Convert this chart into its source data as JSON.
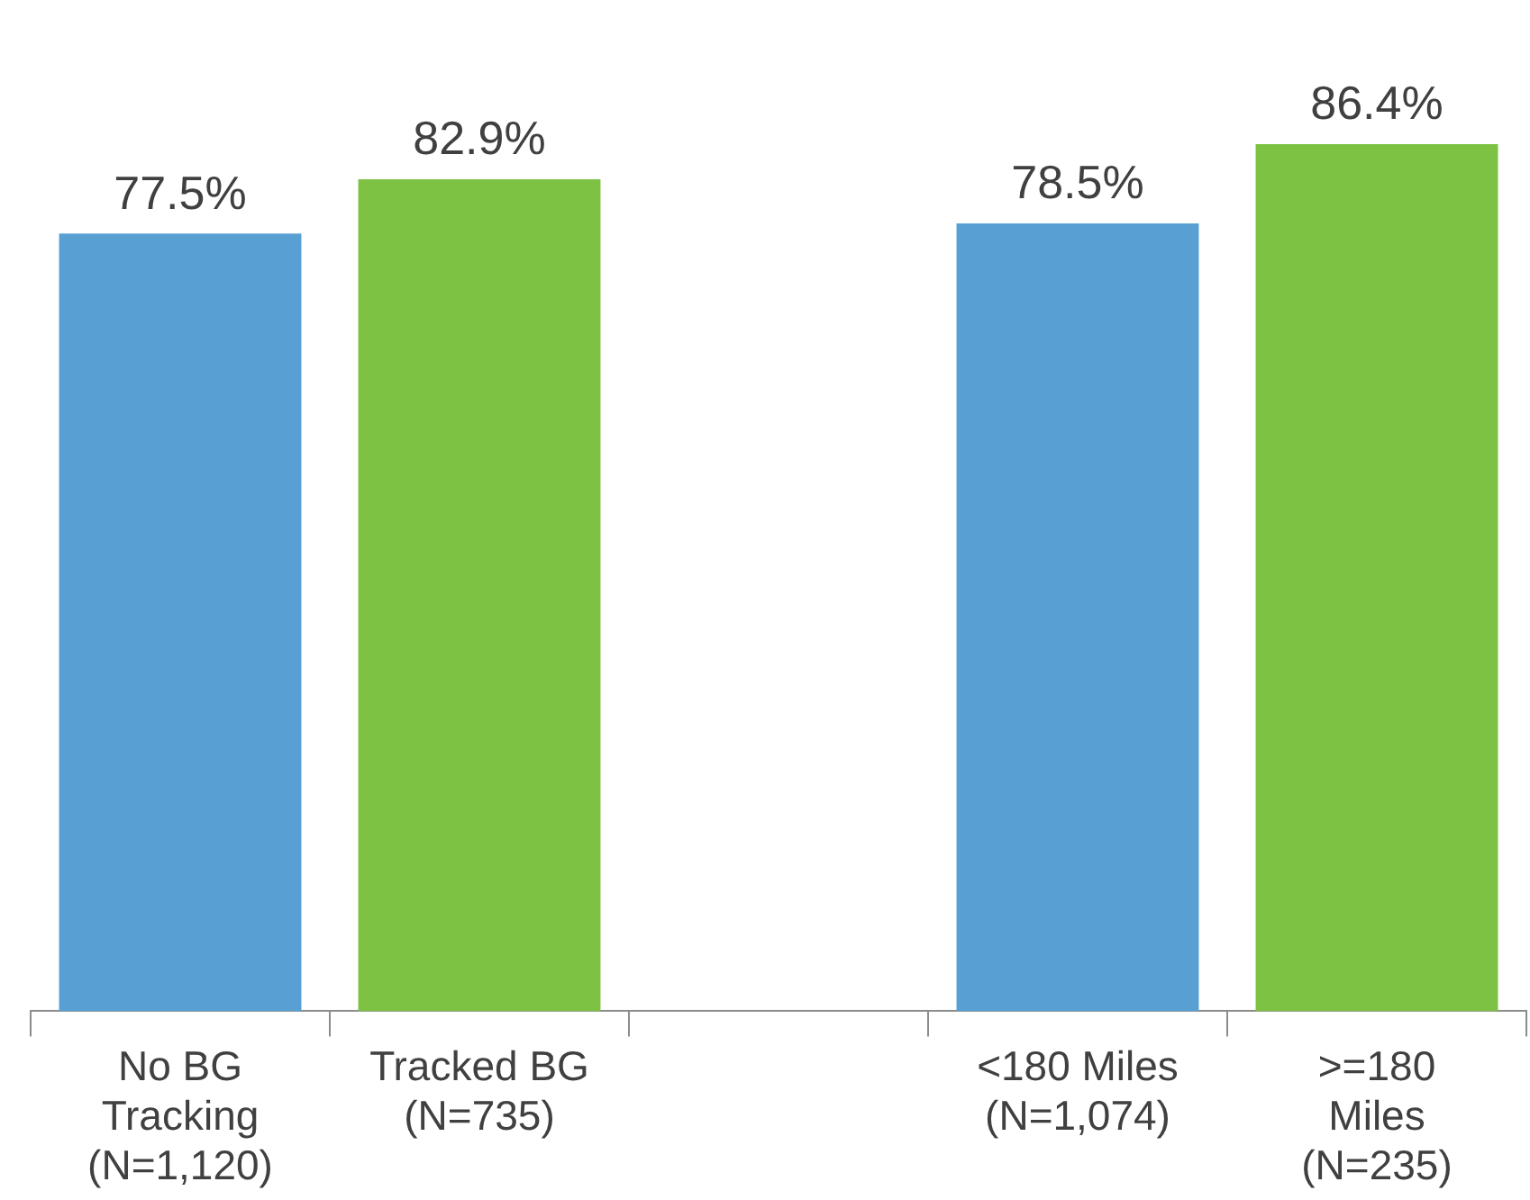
{
  "chart_data": {
    "type": "bar",
    "categories": [
      "No BG\nTracking\n(N=1,120)",
      "Tracked BG\n(N=735)",
      null,
      "<180 Miles\n(N=1,074)",
      ">=180\nMiles\n(N=235)"
    ],
    "values": [
      77.5,
      82.9,
      null,
      78.5,
      86.4
    ],
    "colors": [
      "#58a0d4",
      "#7dc243",
      "#58a0d4",
      "#58a0d4",
      "#7dc243"
    ],
    "value_labels": [
      "77.5%",
      "82.9%",
      null,
      "78.5%",
      "86.4%"
    ],
    "tick_labels": "x"
  }
}
